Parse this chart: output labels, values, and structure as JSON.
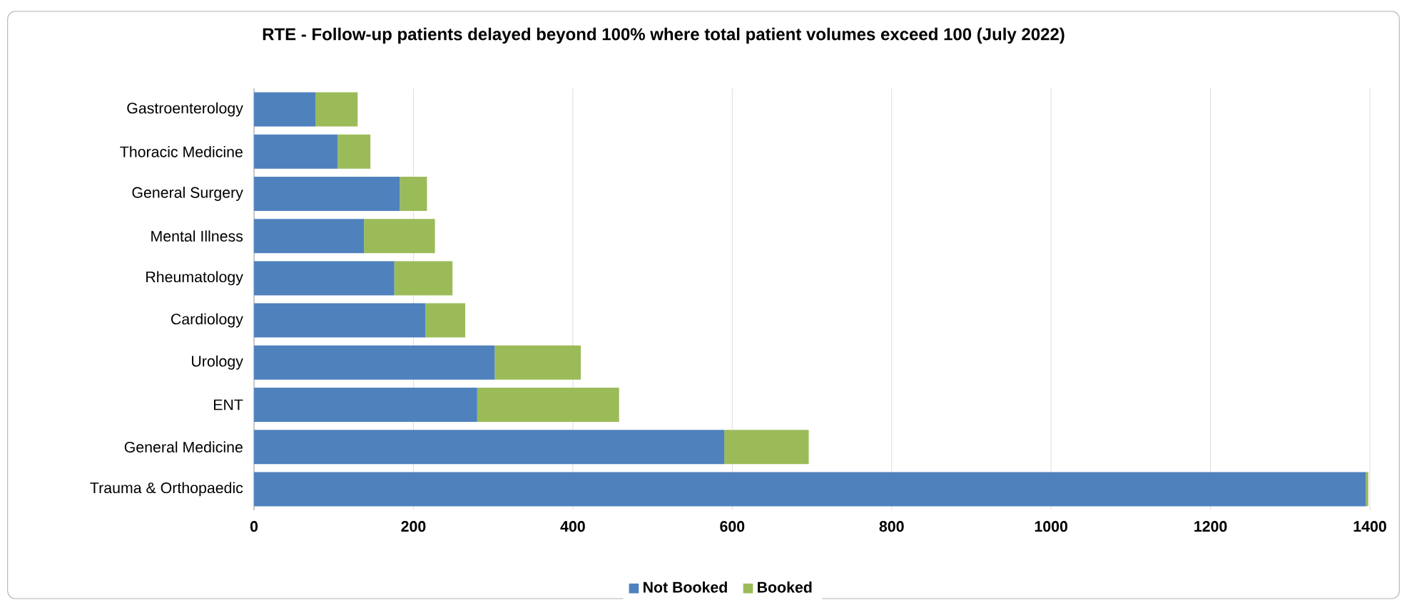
{
  "chart_data": {
    "type": "bar",
    "orientation": "horizontal",
    "stacked": true,
    "title": "RTE - Follow-up patients delayed beyond 100% where total patient volumes exceed 100 (July 2022)",
    "categories": [
      "Gastroenterology",
      "Thoracic Medicine",
      "General Surgery",
      "Mental Illness",
      "Rheumatology",
      "Cardiology",
      "Urology",
      "ENT",
      "General Medicine",
      "Trauma & Orthopaedic"
    ],
    "series": [
      {
        "name": "Not Booked",
        "color": "#4f81bd",
        "values": [
          77,
          105,
          183,
          138,
          176,
          215,
          302,
          280,
          590,
          1395
        ]
      },
      {
        "name": "Booked",
        "color": "#9bbb59",
        "values": [
          53,
          41,
          34,
          89,
          73,
          50,
          108,
          178,
          106,
          3
        ]
      }
    ],
    "xlim": [
      0,
      1400
    ],
    "xticks": [
      0,
      200,
      400,
      600,
      800,
      1000,
      1200,
      1400
    ],
    "grid": "x",
    "legend": "bottom"
  }
}
